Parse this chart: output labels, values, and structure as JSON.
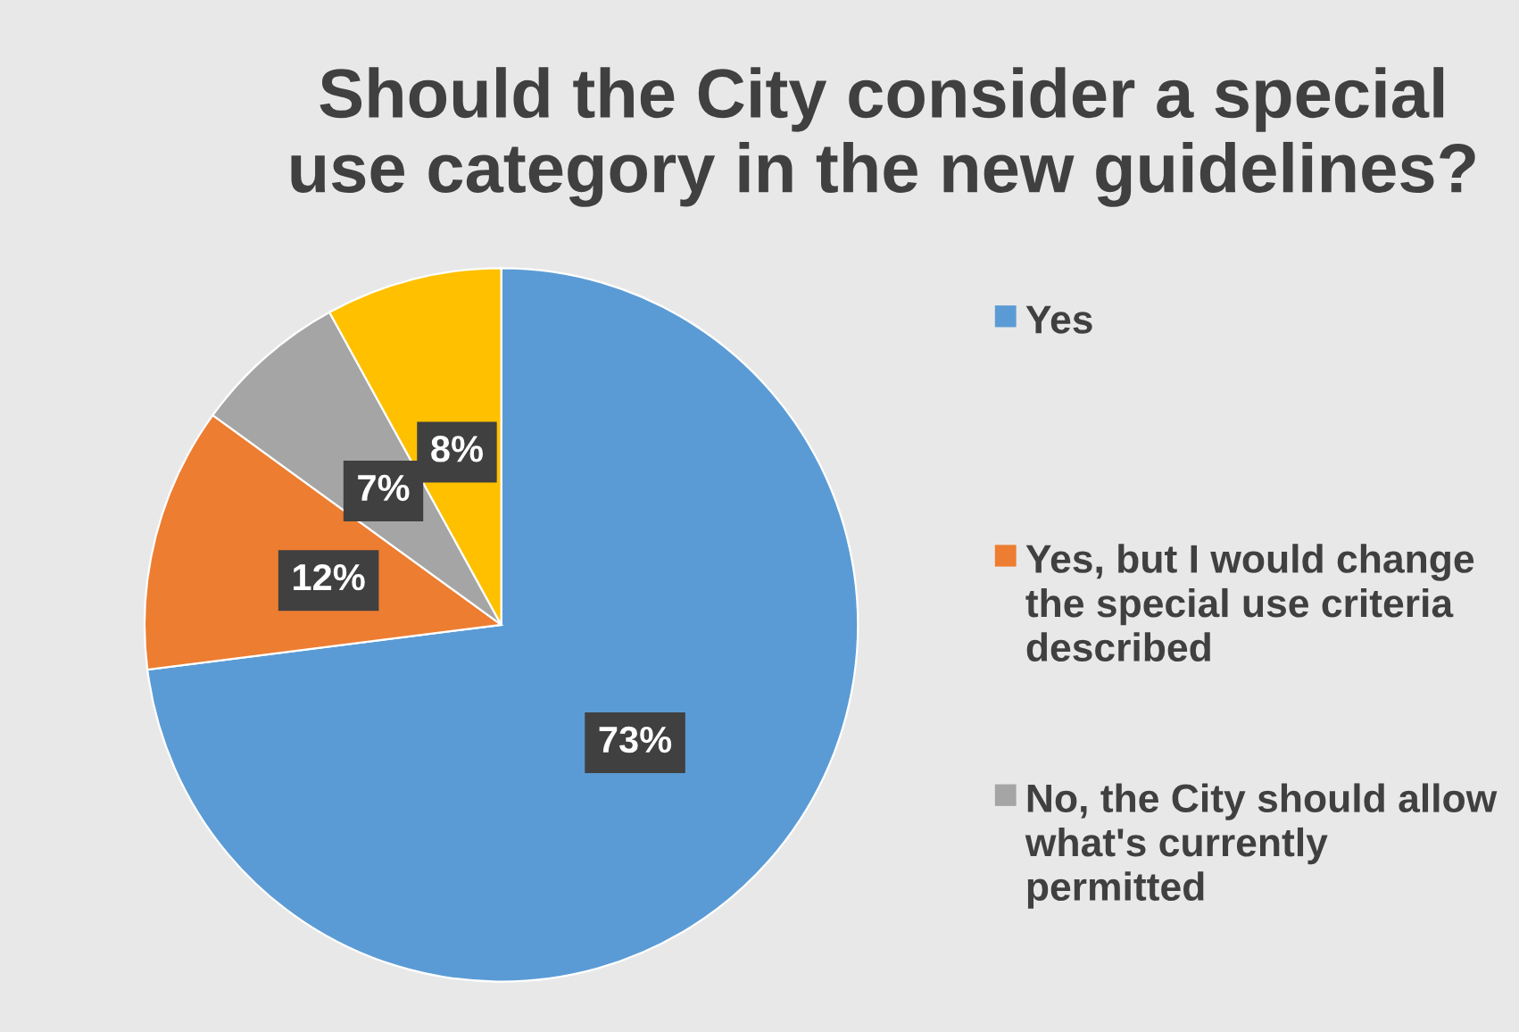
{
  "chart_data": {
    "type": "pie",
    "title": "Should the City consider a special use category in the new guidelines?",
    "categories": [
      "Yes",
      "Yes, but I would change the special use criteria described",
      "No, the City should allow what's currently permitted",
      null
    ],
    "values": [
      73,
      12,
      7,
      8
    ],
    "colors": [
      "#5b9bd5",
      "#ed7d31",
      "#a5a5a5",
      "#ffc000"
    ],
    "value_labels": [
      "73%",
      "12%",
      "7%",
      "8%"
    ],
    "legend": "right"
  }
}
